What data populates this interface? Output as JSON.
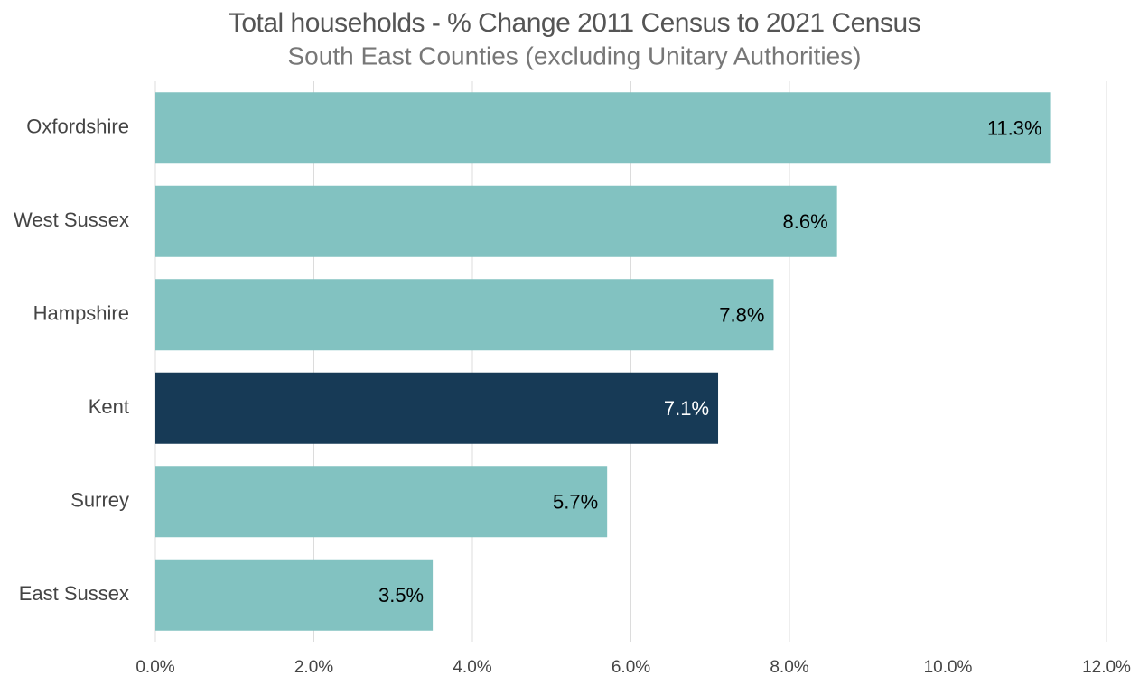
{
  "chart_data": {
    "type": "barh",
    "title": "Total households - % Change 2011 Census to 2021 Census",
    "subtitle": "South East Counties (excluding Unitary Authorities)",
    "categories": [
      "Oxfordshire",
      "West Sussex",
      "Hampshire",
      "Kent",
      "Surrey",
      "East Sussex"
    ],
    "values": [
      11.3,
      8.6,
      7.8,
      7.1,
      5.7,
      3.5
    ],
    "value_labels": [
      "11.3%",
      "8.6%",
      "7.8%",
      "7.1%",
      "5.7%",
      "3.5%"
    ],
    "colors": [
      "#82c2c1",
      "#82c2c1",
      "#82c2c1",
      "#173a56",
      "#82c2c1",
      "#82c2c1"
    ],
    "xlim": [
      0,
      12
    ],
    "xticks": [
      {
        "value": 0,
        "label": "0.0%"
      },
      {
        "value": 2,
        "label": "2.0%"
      },
      {
        "value": 4,
        "label": "4.0%"
      },
      {
        "value": 6,
        "label": "6.0%"
      },
      {
        "value": 8,
        "label": "8.0%"
      },
      {
        "value": 10,
        "label": "10.0%"
      },
      {
        "value": 12,
        "label": "12.0%"
      }
    ],
    "grid": true
  }
}
